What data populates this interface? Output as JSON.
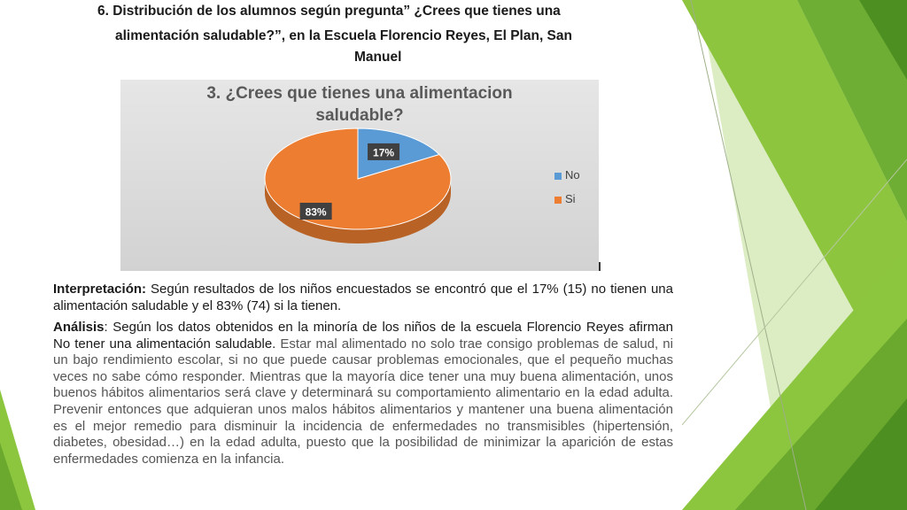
{
  "heading": {
    "line1": "6.  Distribución de los alumnos según pregunta” ¿Crees que tienes una",
    "line2": "alimentación saludable?”, en la Escuela Florencio Reyes, El Plan, San",
    "line3": "Manuel"
  },
  "chart_data": {
    "type": "pie",
    "title_line1": "3. ¿Crees que tienes una alimentacion",
    "title_line2": "saludable?",
    "categories": [
      "No",
      "Si"
    ],
    "values": [
      17,
      83
    ],
    "labels": [
      "17%",
      "83%"
    ],
    "colors": [
      "#5b9bd5",
      "#ed7d31"
    ],
    "legend_position": "right"
  },
  "interpretation": {
    "label": "Interpretación:",
    "text": " Según resultados de los niños encuestados se encontró que el 17% (15) no tienen una alimentación saludable y el 83% (74) si la tienen."
  },
  "analysis": {
    "label": "Análisis",
    "lead": ": Según los datos obtenidos en la minoría de los niños de la escuela Florencio Reyes afirman No tener una alimentación saludable.",
    "body": " Estar mal alimentado no solo trae consigo problemas de salud, ni un bajo rendimiento escolar, si no que puede causar problemas emocionales, que el pequeño muchas veces no sabe cómo responder. Mientras que la mayoría dice tener una muy buena alimentación, unos buenos hábitos alimentarios será clave y determinará su comportamiento alimentario en la edad adulta. Prevenir entonces que adquieran unos malos hábitos alimentarios y mantener una buena alimentación es el mejor remedio para disminuir la incidencia de enfermedades no transmisibles (hipertensión, diabetes, obesidad…) en la edad adulta, puesto que la posibilidad de minimizar la aparición de estas enfermedades comienza en la infancia."
  }
}
